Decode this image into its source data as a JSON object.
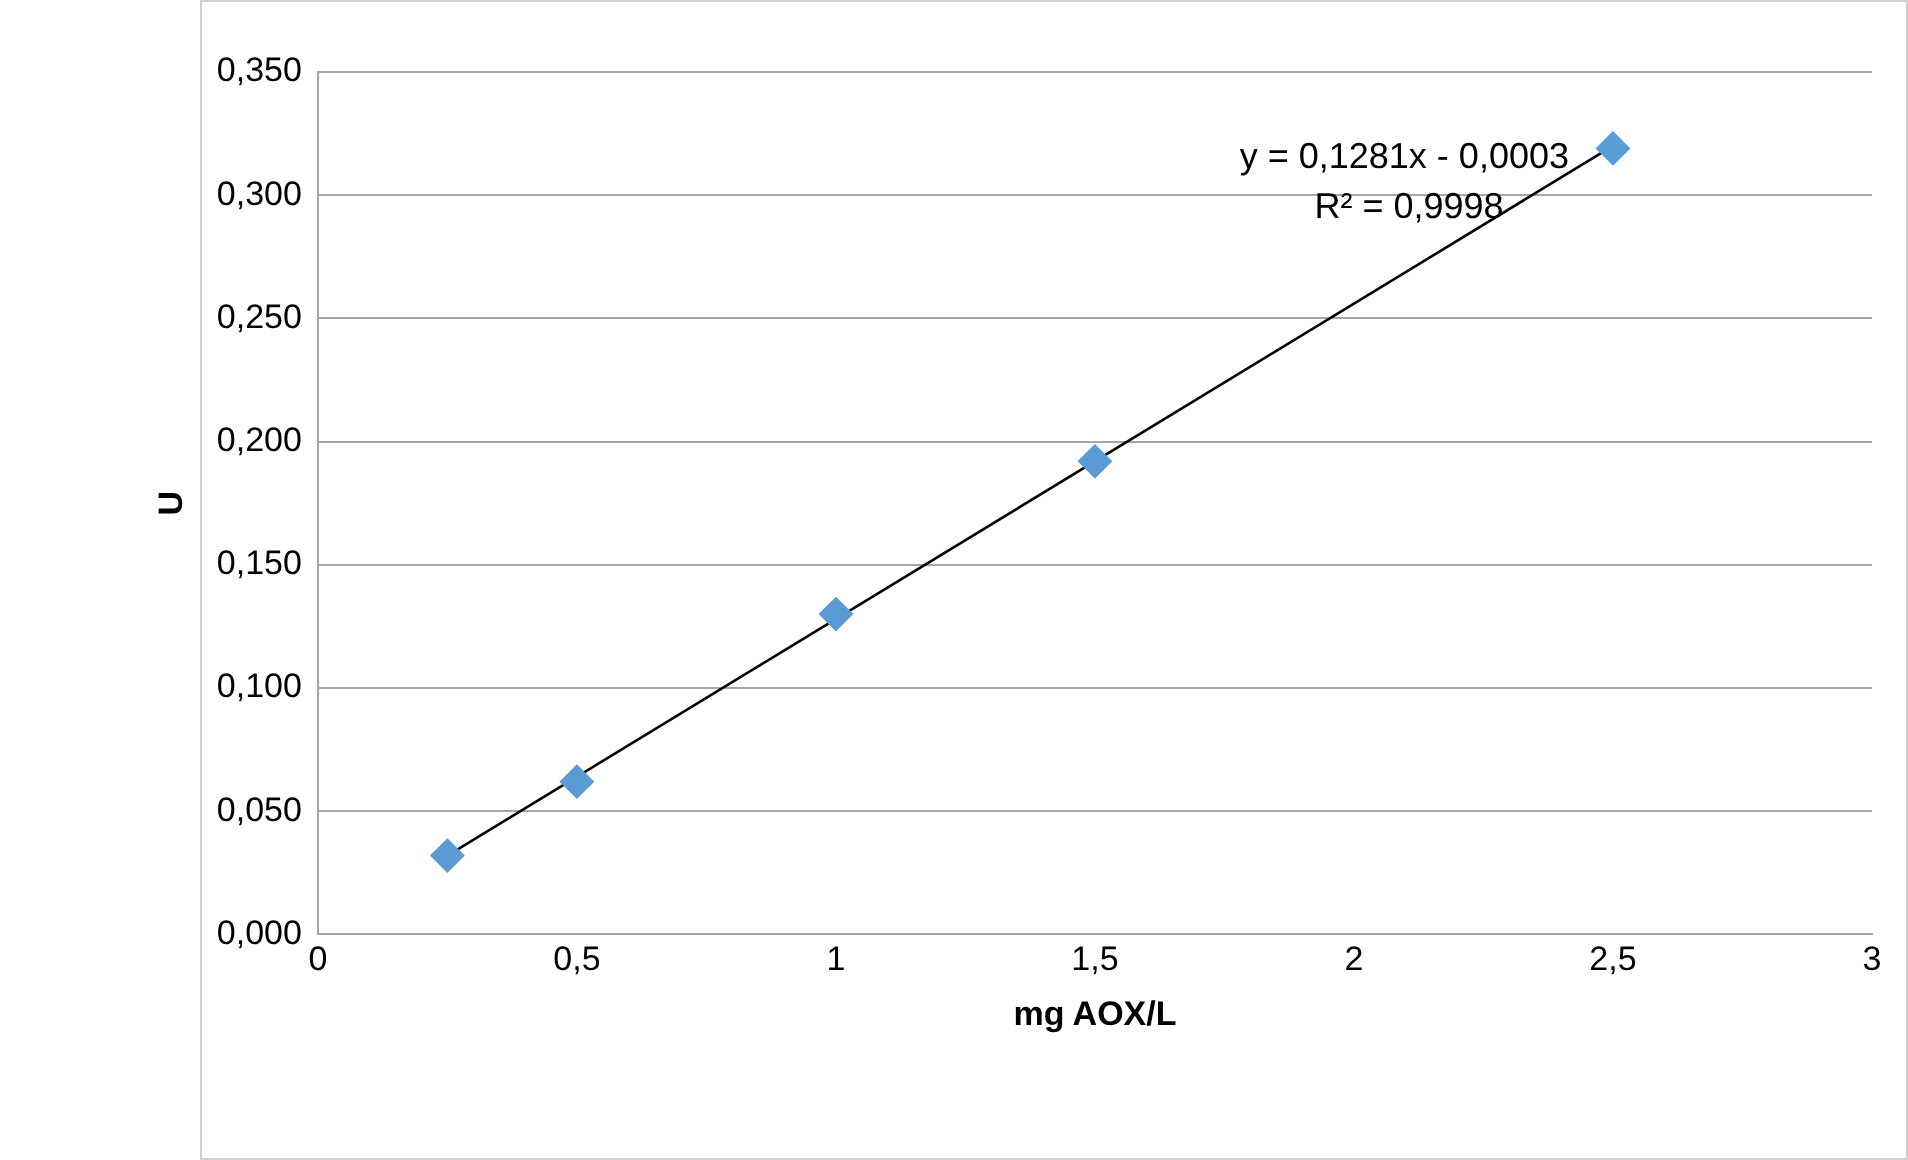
{
  "chart_data": {
    "type": "scatter",
    "xlabel": "mg AOX/L",
    "ylabel": "U",
    "xlim": [
      0,
      3
    ],
    "xticks": [
      0,
      {
        "value": 0.5,
        "label": "0,5"
      },
      1,
      {
        "value": 1.5,
        "label": "1,5"
      },
      2,
      {
        "value": 2.5,
        "label": "2,5"
      },
      3
    ],
    "ylim": [
      0,
      0.35
    ],
    "yticks": [
      {
        "value": 0,
        "label": "0,000"
      },
      {
        "value": 0.05,
        "label": "0,050"
      },
      {
        "value": 0.1,
        "label": "0,100"
      },
      {
        "value": 0.15,
        "label": "0,150"
      },
      {
        "value": 0.2,
        "label": "0,200"
      },
      {
        "value": 0.25,
        "label": "0,250"
      },
      {
        "value": 0.3,
        "label": "0,300"
      },
      {
        "value": 0.35,
        "label": "0,350"
      }
    ],
    "grid": "y",
    "series": [
      {
        "marker": "diamond",
        "color": "#5b9bd5",
        "x": [
          0.25,
          0.5,
          1,
          1.5,
          2.5
        ],
        "values": [
          0.032,
          0.062,
          0.13,
          0.192,
          0.319
        ]
      },
      {
        "type": "line",
        "color": "#000000",
        "x": [
          0.25,
          2.5
        ],
        "values": [
          0.032,
          0.32
        ]
      }
    ],
    "annotations": [
      "y = 0,1281x - 0,0003",
      "R² = 0,9998"
    ]
  }
}
